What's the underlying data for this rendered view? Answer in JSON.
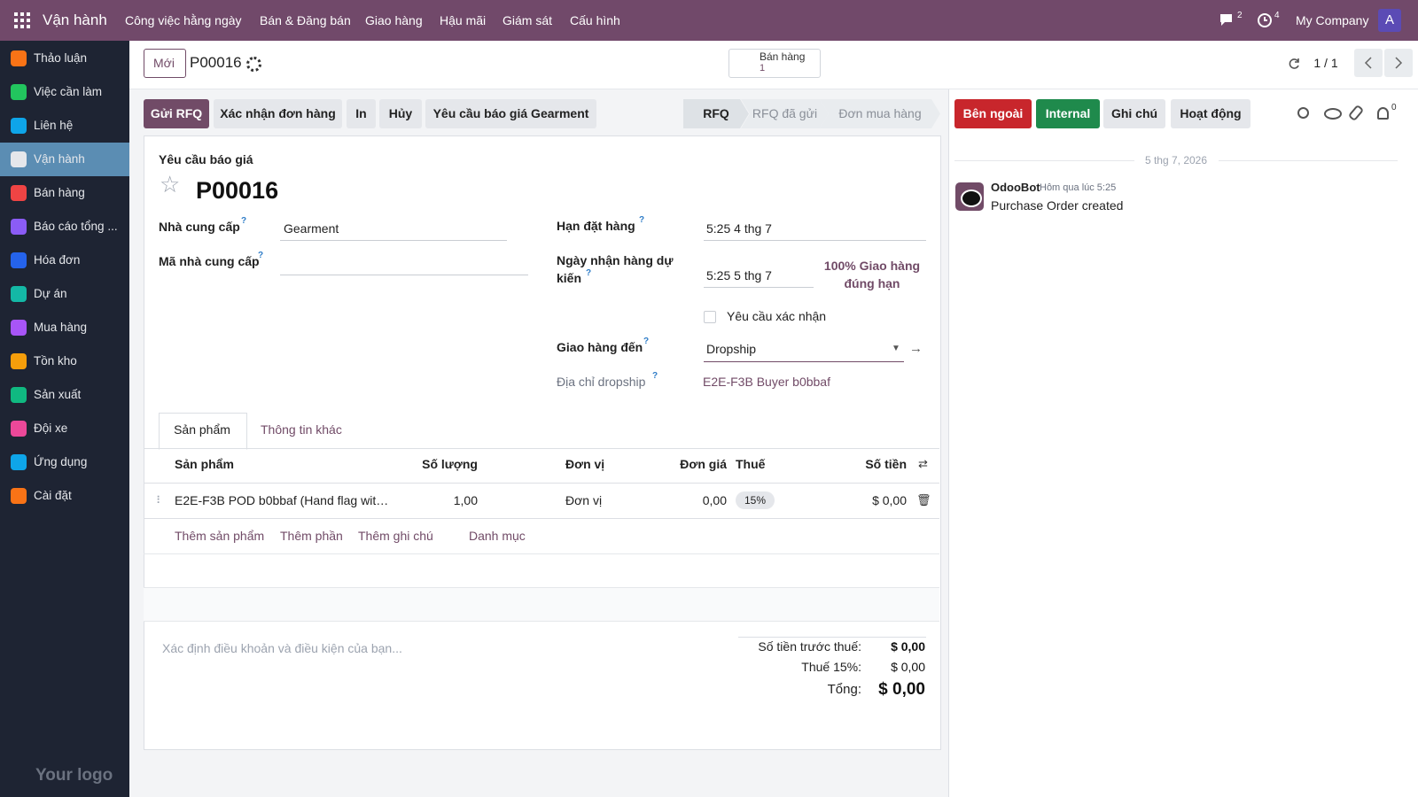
{
  "topbar": {
    "app": "Vận hành",
    "menus": [
      "Công việc hằng ngày",
      "Bán & Đăng bán",
      "Giao hàng",
      "Hậu mãi",
      "Giám sát",
      "Cấu hình"
    ],
    "chat_count": "2",
    "activity_count": "4",
    "company": "My Company",
    "avatar": "A"
  },
  "sidebar": {
    "items": [
      "Thảo luận",
      "Việc cần làm",
      "Liên hệ",
      "Vận hành",
      "Bán hàng",
      "Báo cáo tổng ...",
      "Hóa đơn",
      "Dự án",
      "Mua hàng",
      "Tồn kho",
      "Sản xuất",
      "Đội xe",
      "Ứng dụng",
      "Cài đặt"
    ],
    "logo": "Your logo"
  },
  "control": {
    "new": "Mới",
    "record": "P00016",
    "smart_button": {
      "label": "Bán hàng",
      "count": "1"
    },
    "pager": "1 / 1"
  },
  "actions": [
    "Gửi RFQ",
    "Xác nhận đơn hàng",
    "In",
    "Hủy",
    "Yêu cầu báo giá Gearment"
  ],
  "statuses": [
    "RFQ",
    "RFQ đã gửi",
    "Đơn mua hàng"
  ],
  "form": {
    "subtitle": "Yêu cầu báo giá",
    "name": "P00016",
    "help": "?",
    "fields": {
      "vendor": {
        "label": "Nhà cung cấp",
        "value": "Gearment"
      },
      "vendor_ref": {
        "label": "Mã nhà cung cấp"
      },
      "order_deadline": {
        "label": "Hạn đặt hàng",
        "value": "5:25 4 thg 7"
      },
      "expected_arrival": {
        "label": "Ngày nhận hàng dự kiến",
        "value": "5:25 5 thg 7"
      },
      "on_time": "100% Giao hàng đúng hạn",
      "ask_confirmation": "Yêu cầu xác nhận",
      "deliver_to": {
        "label": "Giao hàng đến",
        "value": "Dropship"
      },
      "dropship_address": {
        "label": "Địa chỉ dropship",
        "value": "E2E-F3B Buyer b0bbaf"
      }
    },
    "tabs": [
      "Sản phẩm",
      "Thông tin khác"
    ],
    "table": {
      "headers": [
        "Sản phẩm",
        "Số lượng",
        "Đơn vị",
        "Đơn giá",
        "Thuế",
        "Số tiền"
      ],
      "rows": [
        [
          "E2E-F3B POD b0bbaf (Hand flag wit…",
          "1,00",
          "Đơn vị",
          "0,00",
          "15%",
          "$ 0,00"
        ]
      ],
      "add_links": [
        "Thêm sản phẩm",
        "Thêm phần",
        "Thêm ghi chú",
        "Danh mục"
      ]
    },
    "terms_placeholder": "Xác định điều khoản và điều kiện của bạn...",
    "totals": [
      {
        "label": "Số tiền trước thuế:",
        "value": "$ 0,00"
      },
      {
        "label": "Thuế 15%:",
        "value": "$ 0,00"
      },
      {
        "label": "Tổng:",
        "value": "$ 0,00"
      }
    ]
  },
  "chatter": {
    "buttons": [
      "Bên ngoài",
      "Internal",
      "Ghi chú",
      "Hoạt động"
    ],
    "followers": "0",
    "date": "5 thg 7, 2026",
    "messages": [
      {
        "author": "OdooBot",
        "time": "Hôm qua lúc 5:25",
        "body": "Purchase Order created"
      }
    ]
  }
}
